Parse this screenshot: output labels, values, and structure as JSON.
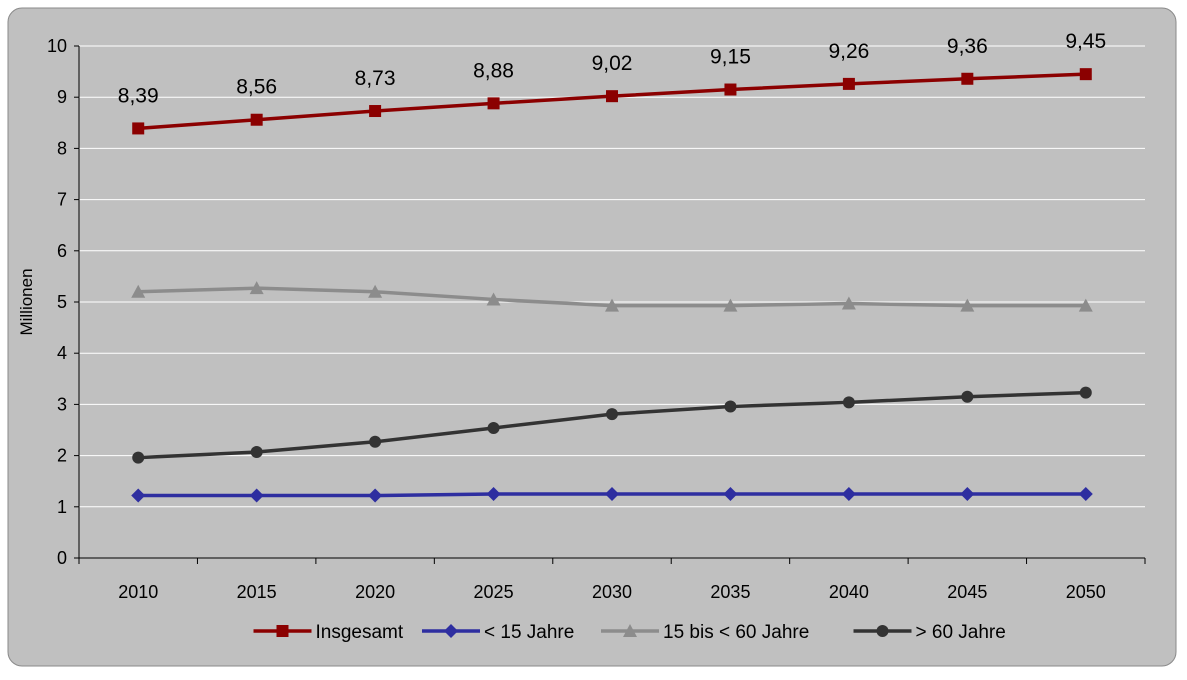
{
  "chart_data": {
    "type": "line",
    "title": "",
    "xlabel": "",
    "ylabel": "Millionen",
    "ylim": [
      0,
      10
    ],
    "yticks": [
      "0",
      "1",
      "2",
      "3",
      "4",
      "5",
      "6",
      "7",
      "8",
      "9",
      "10"
    ],
    "categories": [
      "2010",
      "2015",
      "2020",
      "2025",
      "2030",
      "2035",
      "2040",
      "2045",
      "2050"
    ],
    "grid": true,
    "legend_position": "bottom",
    "series": [
      {
        "name": "Insgesamt",
        "values": [
          8.39,
          8.56,
          8.73,
          8.88,
          9.02,
          9.15,
          9.26,
          9.36,
          9.45
        ],
        "labels": [
          "8,39",
          "8,56",
          "8,73",
          "8,88",
          "9,02",
          "9,15",
          "9,26",
          "9,36",
          "9,45"
        ],
        "color": "#8B0000",
        "marker": "square"
      },
      {
        "name": "< 15 Jahre",
        "values": [
          1.22,
          1.22,
          1.22,
          1.25,
          1.25,
          1.25,
          1.25,
          1.25,
          1.25
        ],
        "color": "#2E2EA0",
        "marker": "diamond"
      },
      {
        "name": "15 bis < 60 Jahre",
        "values": [
          5.2,
          5.27,
          5.2,
          5.05,
          4.93,
          4.93,
          4.97,
          4.93,
          4.93
        ],
        "color": "#8C8C8C",
        "marker": "triangle"
      },
      {
        "name": "> 60 Jahre",
        "values": [
          1.96,
          2.07,
          2.27,
          2.54,
          2.81,
          2.96,
          3.04,
          3.15,
          3.23
        ],
        "color": "#333333",
        "marker": "circle"
      }
    ]
  }
}
